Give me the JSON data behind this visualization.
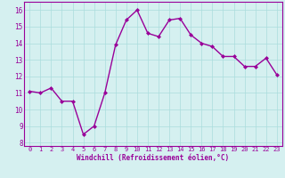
{
  "x": [
    0,
    1,
    2,
    3,
    4,
    5,
    6,
    7,
    8,
    9,
    10,
    11,
    12,
    13,
    14,
    15,
    16,
    17,
    18,
    19,
    20,
    21,
    22,
    23
  ],
  "y": [
    11.1,
    11.0,
    11.3,
    10.5,
    10.5,
    8.5,
    9.0,
    11.0,
    13.9,
    15.4,
    16.0,
    14.6,
    14.4,
    15.4,
    15.5,
    14.5,
    14.0,
    13.8,
    13.2,
    13.2,
    12.6,
    12.6,
    13.1,
    12.1
  ],
  "line_color": "#990099",
  "marker": "D",
  "marker_size": 2.0,
  "bg_color": "#d5f0f0",
  "grid_color": "#aadddd",
  "xlabel": "Windchill (Refroidissement éolien,°C)",
  "xlabel_color": "#990099",
  "tick_color": "#990099",
  "ylim": [
    7.8,
    16.5
  ],
  "yticks": [
    8,
    9,
    10,
    11,
    12,
    13,
    14,
    15,
    16
  ],
  "xlim": [
    -0.5,
    23.5
  ],
  "xticks": [
    0,
    1,
    2,
    3,
    4,
    5,
    6,
    7,
    8,
    9,
    10,
    11,
    12,
    13,
    14,
    15,
    16,
    17,
    18,
    19,
    20,
    21,
    22,
    23
  ],
  "line_width": 1.0
}
